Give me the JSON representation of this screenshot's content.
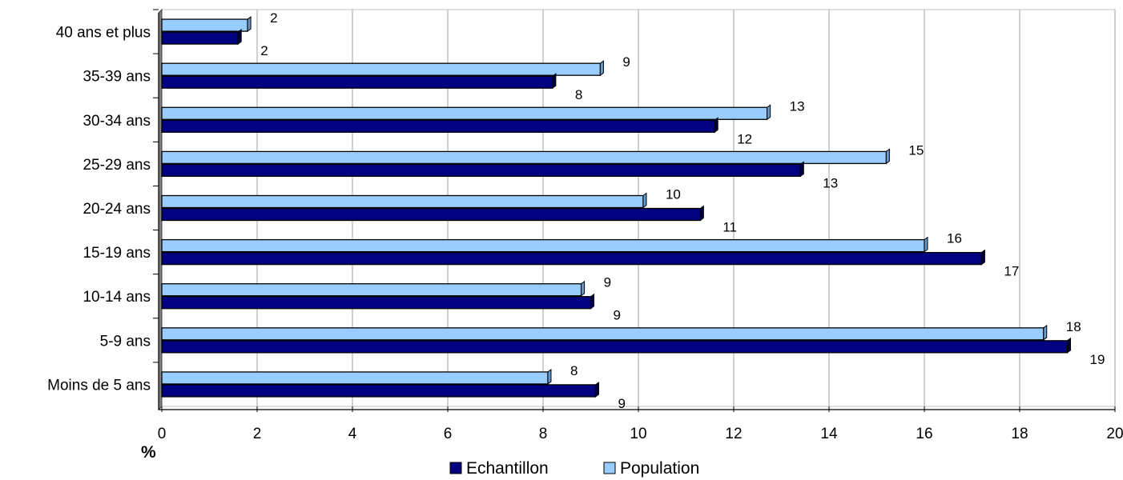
{
  "chart_data": {
    "type": "bar",
    "orientation": "horizontal",
    "categories": [
      "Moins de 5 ans",
      "5-9 ans",
      "10-14 ans",
      "15-19 ans",
      "20-24 ans",
      "25-29 ans",
      "30-34 ans",
      "35-39 ans",
      "40 ans et plus"
    ],
    "series": [
      {
        "name": "Echantillon",
        "color": "#000080",
        "values": [
          9.1,
          19.0,
          9.0,
          17.2,
          11.3,
          13.4,
          11.6,
          8.2,
          1.6
        ],
        "labels": [
          "9",
          "19",
          "9",
          "17",
          "11",
          "13",
          "12",
          "8",
          "2"
        ]
      },
      {
        "name": "Population",
        "color": "#99CCFF",
        "values": [
          8.1,
          18.5,
          8.8,
          16.0,
          10.1,
          15.2,
          12.7,
          9.2,
          1.8
        ],
        "labels": [
          "8",
          "18",
          "9",
          "16",
          "10",
          "15",
          "13",
          "9",
          "2"
        ]
      }
    ],
    "xunit": "%",
    "xlim": [
      0,
      20
    ],
    "xticks": [
      "0",
      "2",
      "4",
      "6",
      "8",
      "10",
      "12",
      "14",
      "16",
      "18",
      "20"
    ],
    "grid": true,
    "legend": "bottom"
  }
}
